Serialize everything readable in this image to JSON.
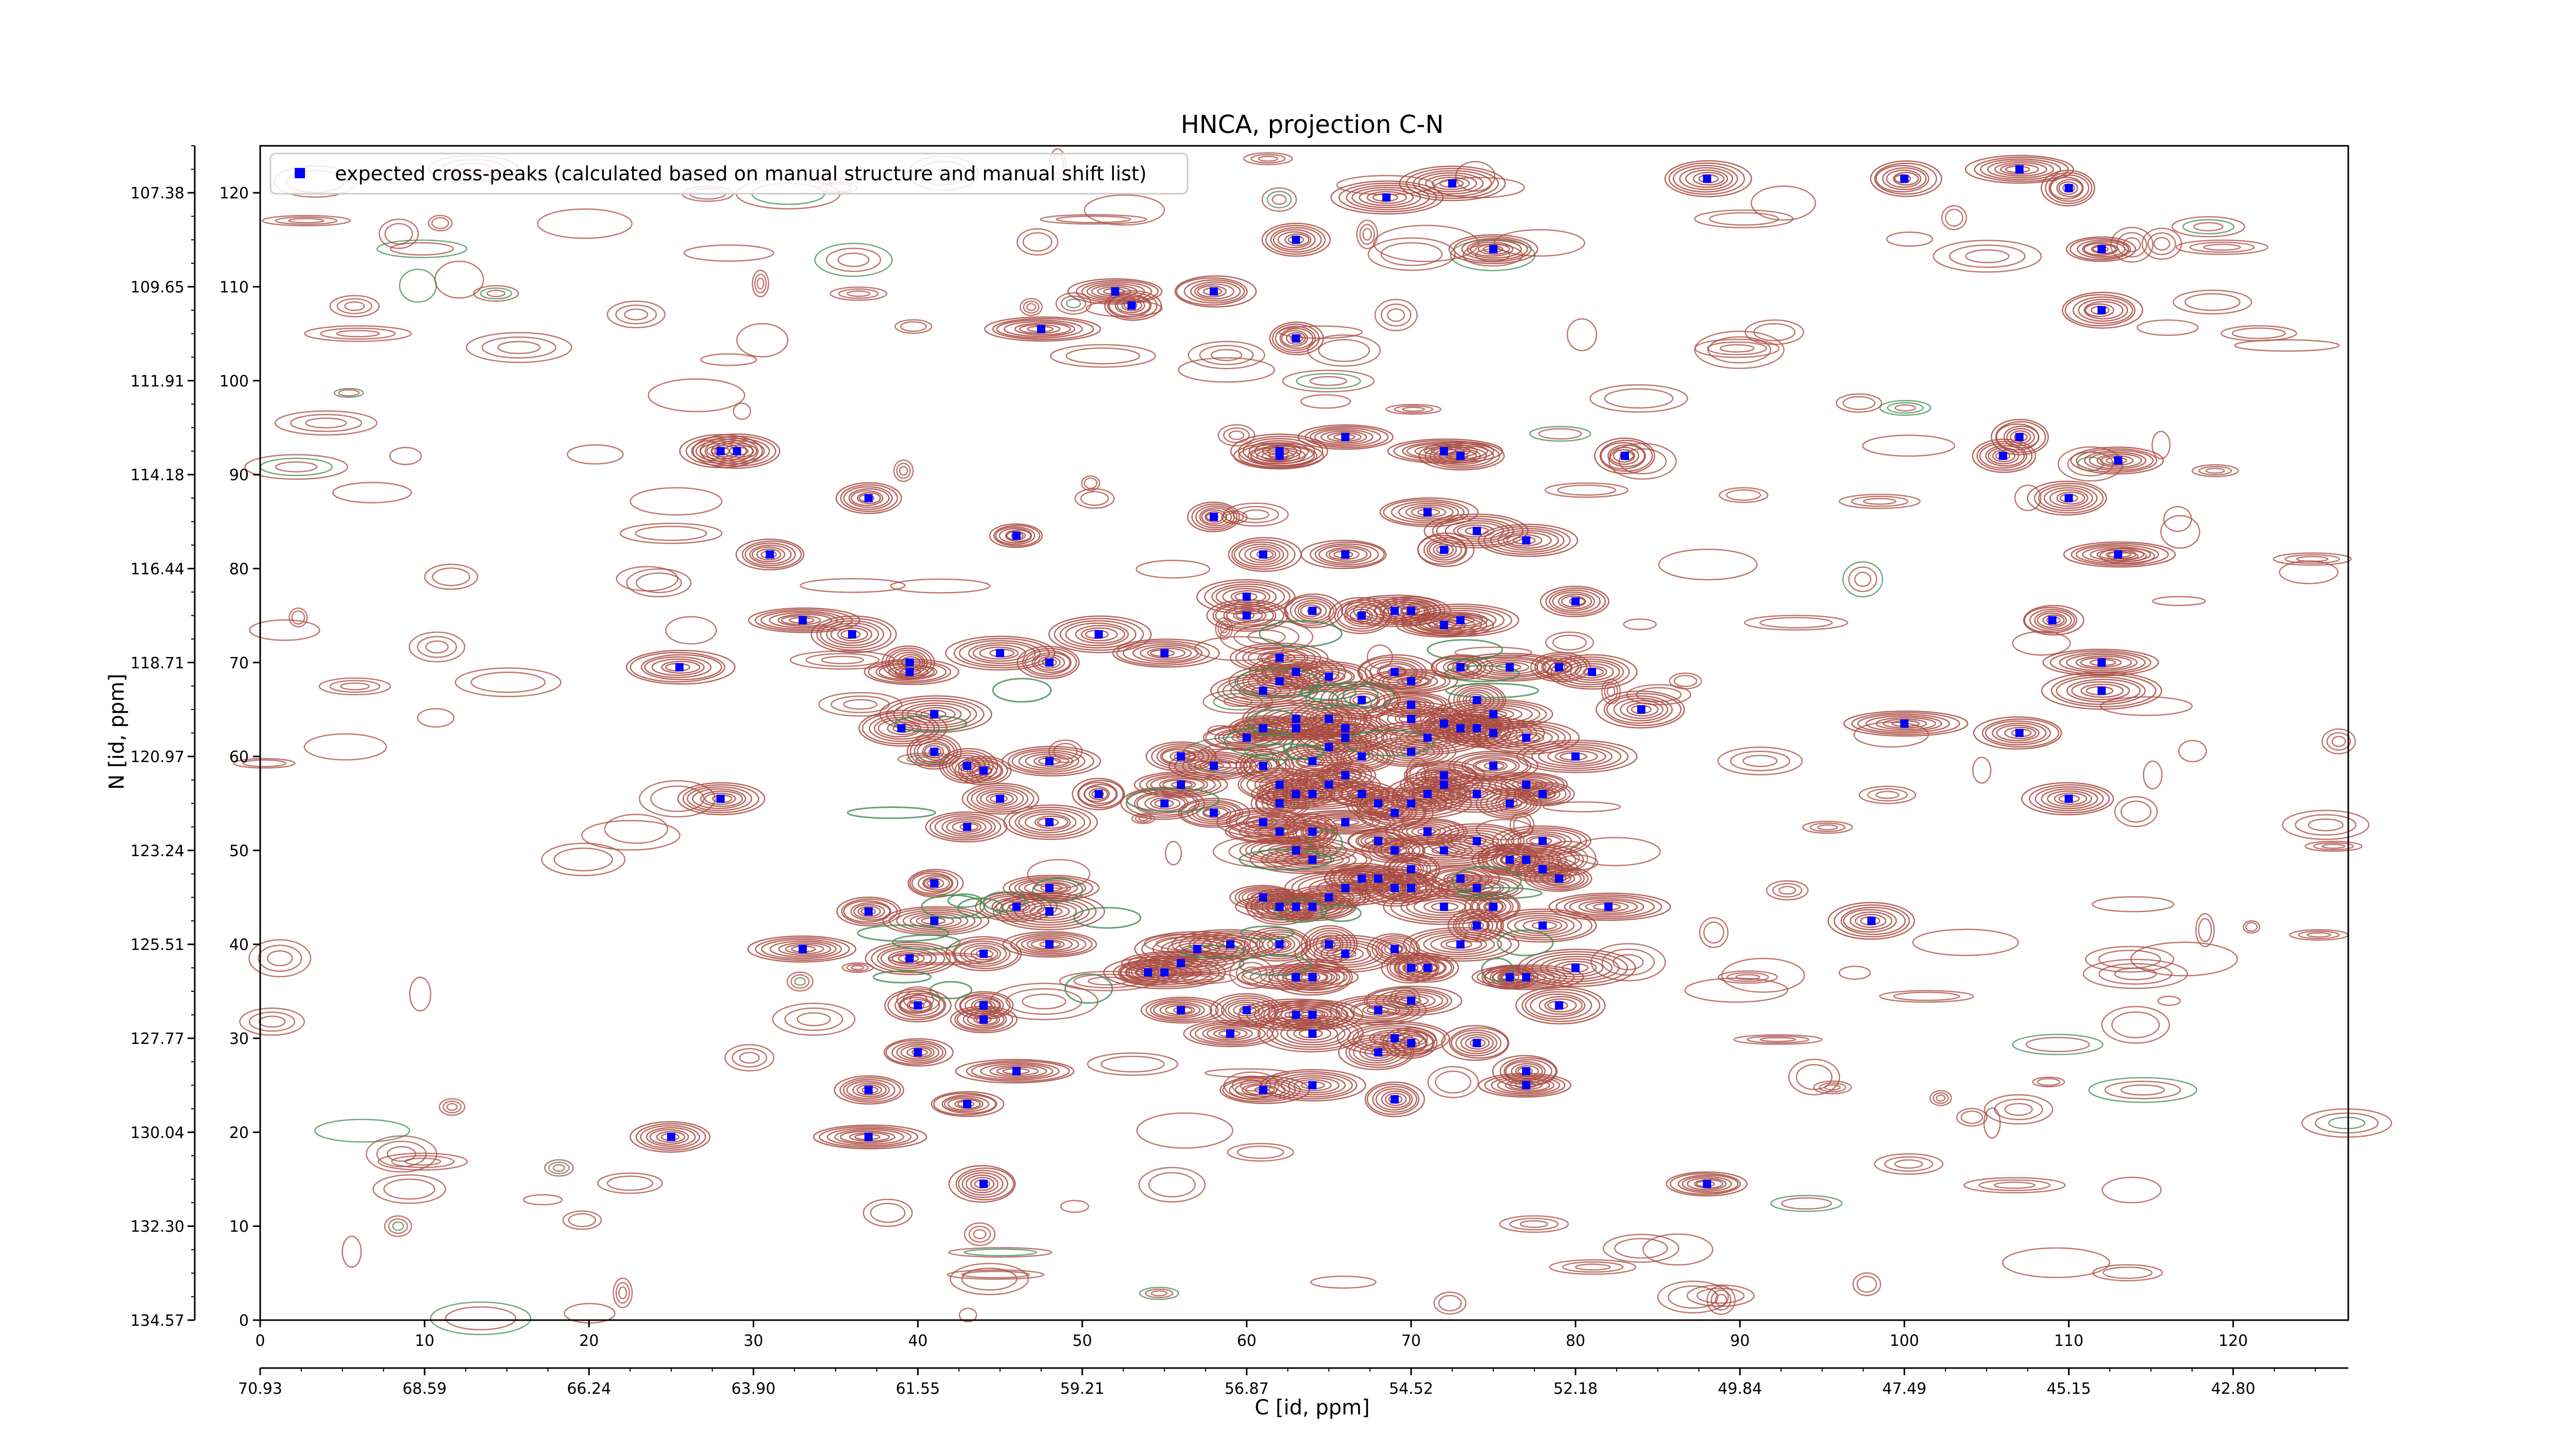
{
  "chart_data": {
    "type": "scatter",
    "title": "HNCA, projection C-N",
    "xlabel": "C [id, ppm]",
    "ylabel": "N [id, ppm]",
    "xlim": [
      0,
      127
    ],
    "ylim": [
      0,
      125
    ],
    "x_index_ticks": [
      "0",
      "10",
      "20",
      "30",
      "40",
      "50",
      "60",
      "70",
      "80",
      "90",
      "100",
      "110",
      "120"
    ],
    "y_index_ticks": [
      "0",
      "10",
      "20",
      "30",
      "40",
      "50",
      "60",
      "70",
      "80",
      "90",
      "100",
      "110",
      "120"
    ],
    "x_ppm_ticks": [
      "70.93",
      "68.59",
      "66.24",
      "63.90",
      "61.55",
      "59.21",
      "56.87",
      "54.52",
      "52.18",
      "49.84",
      "47.49",
      "45.15",
      "42.80"
    ],
    "y_ppm_ticks": [
      "134.57",
      "132.30",
      "130.04",
      "127.77",
      "125.51",
      "123.24",
      "120.97",
      "118.71",
      "116.44",
      "114.18",
      "111.91",
      "109.65",
      "107.38"
    ],
    "grid": false,
    "legend": {
      "position": "top-left",
      "entries": [
        "expected cross-peaks (calculated based on manual structure and manual shift list)"
      ]
    },
    "colors": {
      "positive_contour": "#a84a3f",
      "negative_contour": "#3f8a52",
      "peak_marker": "#0000ff"
    },
    "series": [
      {
        "name": "expected cross-peaks (calculated based on manual structure and manual shift list)",
        "points": [
          [
            72.5,
            121
          ],
          [
            68.5,
            119.5
          ],
          [
            88,
            121.5
          ],
          [
            100,
            121.5
          ],
          [
            107,
            122.5
          ],
          [
            110,
            120.5
          ],
          [
            63,
            115
          ],
          [
            75,
            114
          ],
          [
            112,
            114
          ],
          [
            52,
            109.5
          ],
          [
            58,
            109.5
          ],
          [
            53,
            108
          ],
          [
            47.5,
            105.5
          ],
          [
            63,
            104.5
          ],
          [
            112,
            107.5
          ],
          [
            28,
            92.5
          ],
          [
            29,
            92.5
          ],
          [
            37,
            87.5
          ],
          [
            62,
            92.5
          ],
          [
            62,
            92
          ],
          [
            66,
            94
          ],
          [
            72,
            92.5
          ],
          [
            73,
            92
          ],
          [
            83,
            92
          ],
          [
            107,
            94
          ],
          [
            106,
            92
          ],
          [
            113,
            91.5
          ],
          [
            110,
            87.5
          ],
          [
            46,
            83.5
          ],
          [
            58,
            85.5
          ],
          [
            71,
            86
          ],
          [
            74,
            84
          ],
          [
            77,
            83
          ],
          [
            31,
            81.5
          ],
          [
            61,
            81.5
          ],
          [
            66,
            81.5
          ],
          [
            72,
            82
          ],
          [
            113,
            81.5
          ],
          [
            33,
            74.5
          ],
          [
            36,
            73
          ],
          [
            51,
            73
          ],
          [
            55,
            71
          ],
          [
            45,
            71
          ],
          [
            48,
            70
          ],
          [
            60,
            77
          ],
          [
            80,
            76.5
          ],
          [
            109,
            74.5
          ],
          [
            25.5,
            69.5
          ],
          [
            39.5,
            70
          ],
          [
            39.5,
            69
          ],
          [
            62,
            70.5
          ],
          [
            63,
            69
          ],
          [
            62,
            68
          ],
          [
            65,
            68.5
          ],
          [
            70,
            68
          ],
          [
            69,
            69
          ],
          [
            73,
            69.5
          ],
          [
            76,
            69.5
          ],
          [
            79,
            69.5
          ],
          [
            81,
            69
          ],
          [
            61,
            67
          ],
          [
            67,
            66
          ],
          [
            70,
            65.5
          ],
          [
            74,
            66
          ],
          [
            75,
            64.5
          ],
          [
            84,
            65
          ],
          [
            112,
            67
          ],
          [
            112,
            70
          ],
          [
            41,
            64.5
          ],
          [
            39,
            63
          ],
          [
            60,
            75
          ],
          [
            64,
            75.5
          ],
          [
            67,
            75
          ],
          [
            69,
            75.5
          ],
          [
            70,
            75.5
          ],
          [
            72,
            74
          ],
          [
            73,
            74.5
          ],
          [
            41,
            60.5
          ],
          [
            43,
            59
          ],
          [
            44,
            58.5
          ],
          [
            48,
            59.5
          ],
          [
            56,
            60
          ],
          [
            58,
            59
          ],
          [
            61,
            59
          ],
          [
            64,
            59.5
          ],
          [
            67,
            60
          ],
          [
            70,
            60.5
          ],
          [
            72,
            58
          ],
          [
            75,
            59
          ],
          [
            80,
            60
          ],
          [
            65,
            61
          ],
          [
            66,
            62
          ],
          [
            71,
            62
          ],
          [
            73,
            63
          ],
          [
            75,
            62.5
          ],
          [
            60,
            62
          ],
          [
            61,
            63
          ],
          [
            63,
            63
          ],
          [
            63,
            64
          ],
          [
            65,
            64
          ],
          [
            66,
            63
          ],
          [
            70,
            64
          ],
          [
            72,
            63.5
          ],
          [
            74,
            63
          ],
          [
            77,
            62
          ],
          [
            100,
            63.5
          ],
          [
            107,
            62.5
          ],
          [
            110,
            55.5
          ],
          [
            28,
            55.5
          ],
          [
            45,
            55.5
          ],
          [
            48,
            53
          ],
          [
            43,
            52.5
          ],
          [
            51,
            56
          ],
          [
            55,
            55
          ],
          [
            56,
            57
          ],
          [
            58,
            54
          ],
          [
            61,
            53
          ],
          [
            62,
            55
          ],
          [
            62,
            57
          ],
          [
            63,
            56
          ],
          [
            64,
            56
          ],
          [
            65,
            57
          ],
          [
            66,
            58
          ],
          [
            67,
            56
          ],
          [
            68,
            55
          ],
          [
            69,
            54
          ],
          [
            70,
            55
          ],
          [
            71,
            56
          ],
          [
            72,
            57
          ],
          [
            74,
            56
          ],
          [
            76,
            55
          ],
          [
            77,
            57
          ],
          [
            78,
            56
          ],
          [
            78,
            51
          ],
          [
            62,
            52
          ],
          [
            64,
            52
          ],
          [
            66,
            53
          ],
          [
            68,
            51
          ],
          [
            69,
            50
          ],
          [
            71,
            52
          ],
          [
            72,
            50
          ],
          [
            74,
            51
          ],
          [
            76,
            49
          ],
          [
            77,
            49
          ],
          [
            63,
            50
          ],
          [
            64,
            49
          ],
          [
            68,
            47
          ],
          [
            70,
            48
          ],
          [
            73,
            47
          ],
          [
            74,
            46
          ],
          [
            78,
            48
          ],
          [
            79,
            47
          ],
          [
            41,
            46.5
          ],
          [
            37,
            43.5
          ],
          [
            41,
            42.5
          ],
          [
            46,
            44
          ],
          [
            48,
            43.5
          ],
          [
            48,
            46
          ],
          [
            61,
            45
          ],
          [
            62,
            44
          ],
          [
            63,
            44
          ],
          [
            64,
            44
          ],
          [
            65,
            45
          ],
          [
            66,
            46
          ],
          [
            67,
            47
          ],
          [
            69,
            46
          ],
          [
            70,
            46
          ],
          [
            72,
            44
          ],
          [
            75,
            44
          ],
          [
            78,
            42
          ],
          [
            82,
            44
          ],
          [
            98,
            42.5
          ],
          [
            33,
            39.5
          ],
          [
            39.5,
            38.5
          ],
          [
            44,
            39
          ],
          [
            48,
            40
          ],
          [
            56,
            38
          ],
          [
            57,
            39.5
          ],
          [
            59,
            40
          ],
          [
            62,
            40
          ],
          [
            65,
            40
          ],
          [
            66,
            39
          ],
          [
            69,
            39.5
          ],
          [
            70,
            37.5
          ],
          [
            71,
            37.5
          ],
          [
            73,
            40
          ],
          [
            74,
            42
          ],
          [
            55,
            37
          ],
          [
            54,
            37
          ],
          [
            63,
            36.5
          ],
          [
            64,
            36.5
          ],
          [
            76,
            36.5
          ],
          [
            77,
            36.5
          ],
          [
            80,
            37.5
          ],
          [
            40,
            33.5
          ],
          [
            44,
            33.5
          ],
          [
            44,
            32
          ],
          [
            56,
            33
          ],
          [
            60,
            33
          ],
          [
            63,
            32.5
          ],
          [
            64,
            32.5
          ],
          [
            68,
            33
          ],
          [
            70,
            34
          ],
          [
            79,
            33.5
          ],
          [
            59,
            30.5
          ],
          [
            64,
            30.5
          ],
          [
            69,
            30
          ],
          [
            68,
            28.5
          ],
          [
            70,
            29.5
          ],
          [
            74,
            29.5
          ],
          [
            40,
            28.5
          ],
          [
            46,
            26.5
          ],
          [
            77,
            26.5
          ],
          [
            77,
            25
          ],
          [
            37,
            24.5
          ],
          [
            43,
            23
          ],
          [
            61,
            24.5
          ],
          [
            64,
            25
          ],
          [
            69,
            23.5
          ],
          [
            25,
            19.5
          ],
          [
            37,
            19.5
          ],
          [
            44,
            14.5
          ],
          [
            88,
            14.5
          ]
        ]
      }
    ]
  }
}
